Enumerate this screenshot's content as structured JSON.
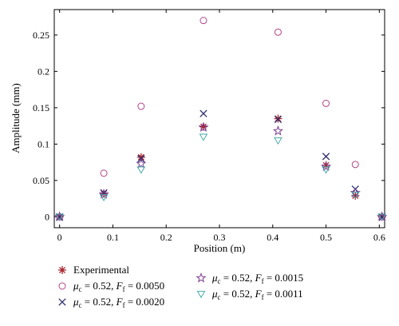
{
  "chart_data": {
    "type": "scatter",
    "xlabel": "Position (m)",
    "ylabel": "Amplitude (mm)",
    "xlim": [
      -0.01,
      0.61
    ],
    "ylim": [
      -0.015,
      0.285
    ],
    "xticks": [
      0,
      0.1,
      0.2,
      0.3,
      0.4,
      0.5,
      0.6
    ],
    "xtick_labels": [
      "0",
      "0.1",
      "0.2",
      "0.3",
      "0.4",
      "0.5",
      "0.6"
    ],
    "yticks": [
      0,
      0.05,
      0.1,
      0.15,
      0.2,
      0.25
    ],
    "ytick_labels": [
      "0",
      "0.05",
      "0.1",
      "0.15",
      "0.2",
      "0.25"
    ],
    "grid": false,
    "legend_position": "bottom",
    "series": [
      {
        "name": "Experimental",
        "marker": "asterisk",
        "color": "#a8232c",
        "x": [
          0,
          0.083,
          0.153,
          0.27,
          0.41,
          0.5,
          0.555,
          0.605
        ],
        "y": [
          0,
          0.032,
          0.082,
          0.124,
          0.135,
          0.071,
          0.029,
          0
        ]
      },
      {
        "name": "μc = 0.52, Ff = 0.0050",
        "marker": "circle",
        "color": "#b0458a",
        "x": [
          0,
          0.083,
          0.153,
          0.27,
          0.41,
          0.5,
          0.555,
          0.605
        ],
        "y": [
          0,
          0.06,
          0.152,
          0.27,
          0.254,
          0.156,
          0.072,
          0
        ]
      },
      {
        "name": "μc = 0.52, Ff = 0.0020",
        "marker": "cross",
        "color": "#2e2f6e",
        "x": [
          0,
          0.083,
          0.153,
          0.27,
          0.41,
          0.5,
          0.555,
          0.605
        ],
        "y": [
          0,
          0.033,
          0.08,
          0.142,
          0.134,
          0.083,
          0.038,
          0
        ]
      },
      {
        "name": "μc = 0.52, Ff = 0.0015",
        "marker": "star",
        "color": "#7b3f8f",
        "x": [
          0,
          0.083,
          0.153,
          0.27,
          0.41,
          0.5,
          0.555,
          0.605
        ],
        "y": [
          0,
          0.031,
          0.073,
          0.123,
          0.118,
          0.069,
          0.033,
          0
        ]
      },
      {
        "name": "μc = 0.52, Ff = 0.0011",
        "marker": "triangle-down",
        "color": "#4aa8ab",
        "x": [
          0,
          0.083,
          0.153,
          0.27,
          0.41,
          0.5,
          0.555,
          0.605
        ],
        "y": [
          0,
          0.027,
          0.065,
          0.11,
          0.105,
          0.065,
          0.03,
          0
        ]
      }
    ],
    "legend": [
      {
        "label": "Experimental",
        "marker": "asterisk",
        "color": "#a8232c"
      },
      {
        "label": "μc = 0.52, Ff = 0.0050",
        "marker": "circle",
        "color": "#b0458a",
        "mu": "μ",
        "mu_sub": "c",
        "mu_val": " = 0.52, ",
        "f": "F",
        "f_sub": "f",
        "f_val": " = 0.0050"
      },
      {
        "label": "μc = 0.52, Ff = 0.0020",
        "marker": "cross",
        "color": "#2e2f6e",
        "mu": "μ",
        "mu_sub": "c",
        "mu_val": " = 0.52, ",
        "f": "F",
        "f_sub": "f",
        "f_val": " = 0.0020"
      },
      {
        "label": "μc = 0.52, Ff = 0.0015",
        "marker": "star",
        "color": "#7b3f8f",
        "mu": "μ",
        "mu_sub": "c",
        "mu_val": " = 0.52, ",
        "f": "F",
        "f_sub": "f",
        "f_val": " = 0.0015"
      },
      {
        "label": "μc = 0.52, Ff = 0.0011",
        "marker": "triangle-down",
        "color": "#4aa8ab",
        "mu": "μ",
        "mu_sub": "c",
        "mu_val": " = 0.52, ",
        "f": "F",
        "f_sub": "f",
        "f_val": " = 0.0011"
      }
    ]
  }
}
